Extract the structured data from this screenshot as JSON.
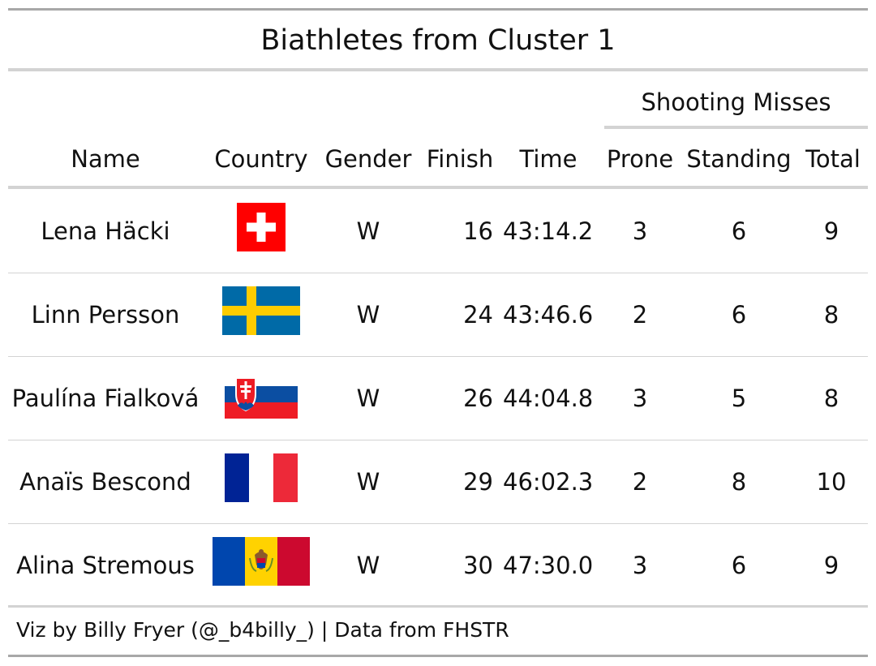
{
  "title": "Biathletes from Cluster 1",
  "spanner_label": "Shooting Misses",
  "columns": {
    "name": "Name",
    "country": "Country",
    "gender": "Gender",
    "finish": "Finish",
    "time": "Time",
    "prone": "Prone",
    "standing": "Standing",
    "total": "Total"
  },
  "rows": [
    {
      "name": "Lena Häcki",
      "country_flag": "switzerland-flag",
      "gender": "W",
      "finish": "16",
      "time": "43:14.2",
      "prone": "3",
      "standing": "6",
      "total": "9"
    },
    {
      "name": "Linn Persson",
      "country_flag": "sweden-flag",
      "gender": "W",
      "finish": "24",
      "time": "43:46.6",
      "prone": "2",
      "standing": "6",
      "total": "8"
    },
    {
      "name": "Paulína Fialková",
      "country_flag": "slovakia-flag",
      "gender": "W",
      "finish": "26",
      "time": "44:04.8",
      "prone": "3",
      "standing": "5",
      "total": "8"
    },
    {
      "name": "Anaïs Bescond",
      "country_flag": "france-flag",
      "gender": "W",
      "finish": "29",
      "time": "46:02.3",
      "prone": "2",
      "standing": "8",
      "total": "10"
    },
    {
      "name": "Alina Stremous",
      "country_flag": "moldova-flag",
      "gender": "W",
      "finish": "30",
      "time": "47:30.0",
      "prone": "3",
      "standing": "6",
      "total": "9"
    }
  ],
  "source_note": "Viz by Billy Fryer (@_b4billy_) | Data from FHSTR",
  "colors": {
    "rule_dark": "#a8a8a8",
    "rule_light": "#d3d3d3",
    "text": "#111111"
  }
}
